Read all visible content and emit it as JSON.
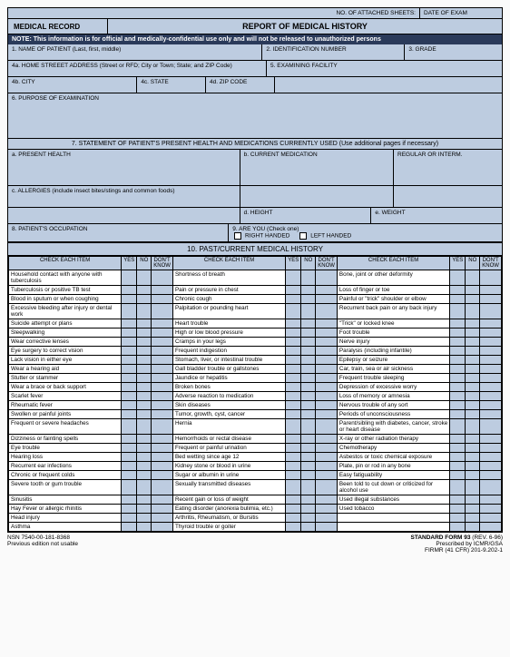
{
  "header": {
    "attached_label": "NO. OF ATTACHED SHEETS:",
    "date_exam_label": "DATE OF EXAM",
    "record_label": "MEDICAL RECORD",
    "title": "REPORT OF MEDICAL HISTORY",
    "note": "NOTE: This information is for official and medically-confidential use only and will not be released to unauthorized persons"
  },
  "fields": {
    "f1": "1.  NAME OF PATIENT (Last, first, middle)",
    "f2": "2.  IDENTIFICATION NUMBER",
    "f3": "3.  GRADE",
    "f4a": "4a. HOME STREEET ADDRESS (Street or RFD; City or Town; State; and ZIP Code)",
    "f5": "5.  EXAMINING FACILITY",
    "f4b": "4b. CITY",
    "f4c": "4c. STATE",
    "f4d": "4d. ZIP CODE",
    "f6": "6.  PURPOSE OF EXAMINATION",
    "f7": "7. STATEMENT OF PATIENT'S PRESENT HEALTH AND MEDICATIONS CURRENTLY USED (Use additional pages if necessary)",
    "fa": "a.  PRESENT HEALTH",
    "fb": "b. CURRENT MEDICATION",
    "freg": "REGULAR OR INTERM.",
    "fc": "c. ALLERGIES (include insect bites/stings and common foods)",
    "fd": "d.  HEIGHT",
    "fe": "e.  WEIGHT",
    "f8": "8.  PATIENT'S OCCUPATION",
    "f9": "9.  ARE YOU (Check one)",
    "right": "RIGHT HANDED",
    "left": "LEFT HANDED",
    "history_title": "10. PAST/CURRENT MEDICAL HISTORY"
  },
  "th": {
    "check": "CHECK EACH ITEM",
    "yes": "YES",
    "no": "NO",
    "dk": "DON'T KNOW"
  },
  "col1": [
    "Household contact with anyone with tuberculosis",
    "Tuberculosis or positive TB test",
    "Blood in sputum or when coughing",
    "Excessive bleeding after injury or dental work",
    "Suicide attempt or plans",
    "Sleepwalking",
    "Wear corrective lenses",
    "Eye surgery to correct vision",
    "Lack vision in either eye",
    "Wear a hearing aid",
    "Stutter or stammer",
    "Wear a brace or back support",
    "Scarlet fever",
    "Rheumatic fever",
    "Swollen or painful joints",
    "Frequent or severe headaches",
    "Dizziness or fainting spells",
    "Eye trouble",
    "Hearing loss",
    "Recurrent ear infections",
    "Chronic or frequent colds",
    "Severe tooth or gum trouble",
    "Sinusitis",
    "Hay Fever or allergic rhinitis",
    "Head injury",
    "Asthma"
  ],
  "col2": [
    "Shortness of breath",
    "Pain or pressure in chest",
    "Chronic cough",
    "Palpitation or pounding heart",
    "Heart trouble",
    "High or low blood pressure",
    "Cramps in your legs",
    "Frequent indigestion",
    "Stomach, liver, or intestinal trouble",
    "Gall bladder trouble or gallstones",
    "Jaundice or hepatitis",
    "Broken bones",
    "Adverse reaction to medication",
    "Skin diseases",
    "Tumor, growth, cyst, cancer",
    "Hernia",
    "Hemorrhoids or rectal disease",
    "Frequent or painful urination",
    "Bed wetting since age 12",
    "Kidney stone or blood in urine",
    "Sugar or albumin in urine",
    "Sexually transmitted diseases",
    "Recent gain or loss of weight",
    "Eating disorder (anorexia bulimia, etc.)",
    "Arthritis, Rheumatism, or Bursitis",
    "Thyroid trouble or goiter"
  ],
  "col3": [
    "Bone, joint or other deformity",
    "Loss of finger or toe",
    "Painful or \"trick\" shoulder or elbow",
    "Recurrent back pain or any back injury",
    "\"Trick\" or locked knee",
    "Foot trouble",
    "Nerve injury",
    "Paralysis (including infantile)",
    "Epilepsy or seizure",
    "Car, train, sea or air sickness",
    "Frequent trouble sleeping",
    "Depression of excessive worry",
    "Loss of memory or amnesia",
    "Nervous trouble of any sort",
    "Periods of unconsciousness",
    "Parent/sibling with diabetes, cancer, stroke or heart disease",
    "X-ray or other radiation therapy",
    "Chemotherapy",
    "Asbestos or toxic chemical exposure",
    "Plate, pin or rod in any bone",
    "Easy fatiguability",
    "Been told to cut down or criticized for alcohol use",
    "Used illegal substances",
    "Used tobacco"
  ],
  "footer": {
    "nsn": "NSN 7540-00-181-8368",
    "prev": "Previous edition not usable",
    "std": "STANDARD FORM 93",
    "rev": "(REV. 6-96)",
    "presc": "Prescribed by ICMR/GSA",
    "firmr": "FIRMR (41 CFR) 201-9.202-1"
  }
}
